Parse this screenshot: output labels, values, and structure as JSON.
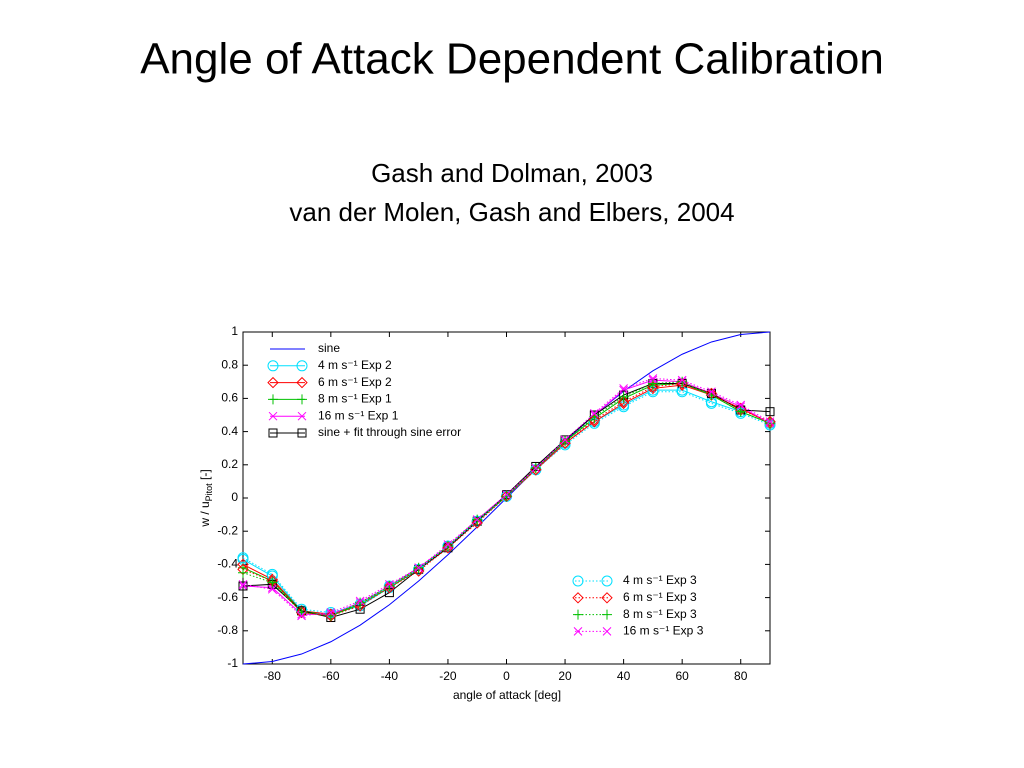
{
  "title": "Angle of Attack Dependent Calibration",
  "subtitle": [
    "Gash and Dolman, 2003",
    "van der Molen, Gash and Elbers, 2004"
  ],
  "chart_data": {
    "type": "line",
    "xlabel": "angle of attack [deg]",
    "ylabel": [
      "w / u",
      "Pitot",
      " [-]"
    ],
    "xlim": [
      -90,
      90
    ],
    "ylim": [
      -1,
      1
    ],
    "xticks": [
      -80,
      -60,
      -40,
      -20,
      0,
      20,
      40,
      60,
      80
    ],
    "yticks": [
      -1,
      -0.8,
      -0.6,
      -0.4,
      -0.2,
      0,
      0.2,
      0.4,
      0.6,
      0.8,
      1
    ],
    "grid": false,
    "x": [
      -90,
      -80,
      -70,
      -60,
      -50,
      -40,
      -30,
      -20,
      -10,
      0,
      10,
      20,
      30,
      40,
      50,
      60,
      70,
      80,
      90
    ],
    "series": [
      {
        "name": "sine",
        "color": "#0000ff",
        "marker": "none",
        "linestyle": "solid",
        "legend": "upper left",
        "values": [
          -1,
          -0.985,
          -0.94,
          -0.866,
          -0.766,
          -0.643,
          -0.5,
          -0.342,
          -0.174,
          0,
          0.174,
          0.342,
          0.5,
          0.643,
          0.766,
          0.866,
          0.94,
          0.985,
          1
        ]
      },
      {
        "name": "4 m s⁻¹  Exp 2",
        "color": "#00e0ff",
        "marker": "circle",
        "linestyle": "solid",
        "legend": "upper left",
        "values": [
          -0.37,
          -0.47,
          -0.68,
          -0.7,
          -0.65,
          -0.54,
          -0.43,
          -0.29,
          -0.14,
          0.01,
          0.17,
          0.33,
          0.46,
          0.56,
          0.65,
          0.65,
          0.58,
          0.52,
          0.45
        ]
      },
      {
        "name": "6 m s⁻¹  Exp 2",
        "color": "#ff0000",
        "marker": "diamond",
        "linestyle": "solid",
        "legend": "upper left",
        "values": [
          -0.4,
          -0.49,
          -0.68,
          -0.7,
          -0.64,
          -0.53,
          -0.43,
          -0.29,
          -0.14,
          0.01,
          0.17,
          0.33,
          0.46,
          0.57,
          0.66,
          0.68,
          0.62,
          0.54,
          0.45
        ]
      },
      {
        "name": "8 m s⁻¹  Exp 1",
        "color": "#00c000",
        "marker": "plus",
        "linestyle": "solid",
        "legend": "upper left",
        "values": [
          -0.42,
          -0.5,
          -0.68,
          -0.71,
          -0.64,
          -0.54,
          -0.43,
          -0.3,
          -0.14,
          0.01,
          0.18,
          0.34,
          0.48,
          0.6,
          0.68,
          0.69,
          0.62,
          0.52,
          0.45
        ]
      },
      {
        "name": "16 m s⁻¹  Exp 1",
        "color": "#ff00ff",
        "marker": "cross",
        "linestyle": "solid",
        "legend": "upper left",
        "values": [
          -0.53,
          -0.54,
          -0.7,
          -0.7,
          -0.63,
          -0.53,
          -0.42,
          -0.29,
          -0.13,
          0.02,
          0.18,
          0.35,
          0.5,
          0.65,
          0.71,
          0.7,
          0.63,
          0.55,
          0.45
        ]
      },
      {
        "name": "sine + fit through sine error",
        "color": "#000000",
        "marker": "square",
        "linestyle": "solid",
        "legend": "upper left",
        "values": [
          -0.53,
          -0.52,
          -0.68,
          -0.72,
          -0.67,
          -0.57,
          -0.43,
          -0.3,
          -0.14,
          0.02,
          0.19,
          0.35,
          0.5,
          0.62,
          0.69,
          0.69,
          0.63,
          0.53,
          0.52
        ]
      },
      {
        "name": "4 m s⁻¹  Exp 3",
        "color": "#00e0ff",
        "marker": "circle",
        "linestyle": "dotted",
        "legend": "lower right",
        "values": [
          -0.36,
          -0.46,
          -0.67,
          -0.69,
          -0.64,
          -0.53,
          -0.43,
          -0.29,
          -0.14,
          0.01,
          0.17,
          0.32,
          0.45,
          0.55,
          0.64,
          0.64,
          0.57,
          0.51,
          0.44
        ]
      },
      {
        "name": "6 m s⁻¹  Exp 3",
        "color": "#ff0000",
        "marker": "diamond",
        "linestyle": "dotted",
        "legend": "lower right",
        "values": [
          -0.43,
          -0.5,
          -0.69,
          -0.71,
          -0.65,
          -0.54,
          -0.44,
          -0.3,
          -0.15,
          0.01,
          0.17,
          0.33,
          0.47,
          0.58,
          0.67,
          0.69,
          0.63,
          0.53,
          0.46
        ]
      },
      {
        "name": "8 m s⁻¹  Exp 3",
        "color": "#00c000",
        "marker": "plus",
        "linestyle": "dotted",
        "legend": "lower right",
        "values": [
          -0.45,
          -0.51,
          -0.69,
          -0.71,
          -0.63,
          -0.53,
          -0.42,
          -0.29,
          -0.13,
          0.01,
          0.18,
          0.34,
          0.49,
          0.61,
          0.69,
          0.7,
          0.62,
          0.52,
          0.45
        ]
      },
      {
        "name": "16 m s⁻¹  Exp 3",
        "color": "#ff00ff",
        "marker": "cross",
        "linestyle": "dotted",
        "legend": "lower right",
        "values": [
          -0.52,
          -0.55,
          -0.71,
          -0.69,
          -0.62,
          -0.52,
          -0.42,
          -0.28,
          -0.13,
          0.02,
          0.18,
          0.35,
          0.51,
          0.66,
          0.72,
          0.71,
          0.64,
          0.56,
          0.46
        ]
      }
    ]
  }
}
